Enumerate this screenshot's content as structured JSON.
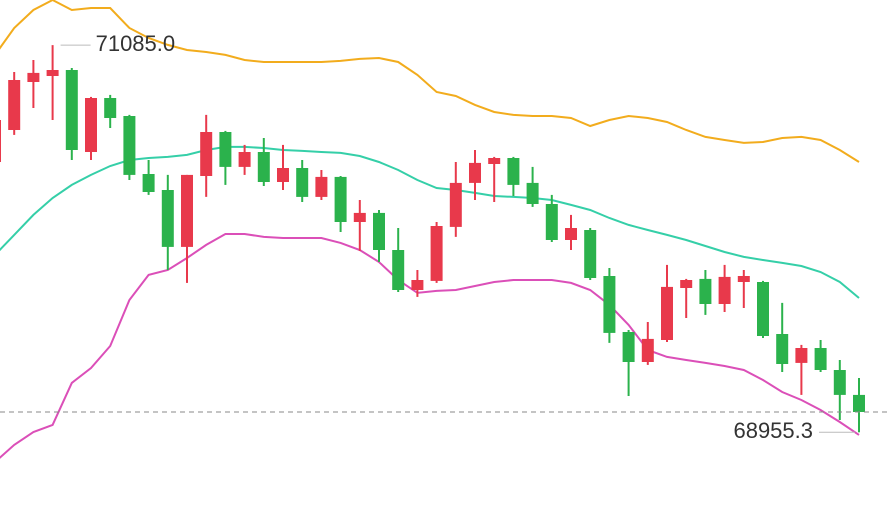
{
  "chart_data": {
    "type": "candlestick",
    "up_color": "#e8394b",
    "down_color": "#2bb24c",
    "ylim": [
      68528,
      71333
    ],
    "high_label": "71085.0",
    "low_label": "68955.3",
    "open": [
      70442,
      70618,
      70882,
      70915,
      70948,
      70497,
      70794,
      70695,
      70376,
      70288,
      69975,
      70365,
      70607,
      70415,
      70497,
      70332,
      70409,
      70250,
      70360,
      70112,
      70162,
      69958,
      69738,
      69788,
      70085,
      70327,
      70431,
      70464,
      70327,
      70211,
      70013,
      70068,
      69815,
      69507,
      69342,
      69463,
      69749,
      69799,
      69661,
      69782,
      69782,
      69496,
      69337,
      69419,
      69298,
      69161
    ],
    "high": [
      70728,
      70937,
      71003,
      71085,
      70959,
      70800,
      70811,
      70701,
      70453,
      70371,
      70371,
      70701,
      70613,
      70536,
      70574,
      70536,
      70453,
      70398,
      70365,
      70233,
      70178,
      70079,
      69848,
      70112,
      70442,
      70508,
      70470,
      70470,
      70415,
      70261,
      70151,
      70079,
      69859,
      69518,
      69562,
      69876,
      69799,
      69848,
      69876,
      69848,
      69788,
      69667,
      69436,
      69463,
      69353,
      69254
    ],
    "low": [
      70426,
      70591,
      70739,
      70673,
      70453,
      70453,
      70629,
      70343,
      70261,
      69848,
      69777,
      70250,
      70316,
      70371,
      70310,
      70288,
      70222,
      70233,
      70057,
      69953,
      69892,
      69727,
      69700,
      69777,
      70030,
      70233,
      70222,
      70255,
      70195,
      70002,
      69958,
      69793,
      69447,
      69155,
      69326,
      69452,
      69584,
      69601,
      69617,
      69639,
      69474,
      69287,
      69161,
      69287,
      69023,
      68955.3
    ],
    "close": [
      70673,
      70893,
      70932,
      70948,
      70508,
      70794,
      70684,
      70371,
      70277,
      69975,
      70371,
      70607,
      70415,
      70497,
      70332,
      70409,
      70250,
      70360,
      70112,
      70162,
      69958,
      69738,
      69793,
      70090,
      70327,
      70437,
      70464,
      70316,
      70211,
      70013,
      70079,
      69804,
      69502,
      69342,
      69469,
      69755,
      69793,
      69661,
      69810,
      69815,
      69485,
      69331,
      69419,
      69298,
      69161,
      69067
    ],
    "bands": [
      {
        "color": "#f2ac1d",
        "values": [
          71031,
          71179,
          71278,
          71333,
          71278,
          71289,
          71289,
          71179,
          71124,
          71086,
          71058,
          71047,
          71031,
          71003,
          70992,
          70992,
          70992,
          70992,
          70998,
          71009,
          71014,
          70992,
          70921,
          70827,
          70805,
          70756,
          70717,
          70701,
          70695,
          70695,
          70684,
          70640,
          70673,
          70695,
          70684,
          70662,
          70618,
          70580,
          70563,
          70547,
          70552,
          70574,
          70580,
          70563,
          70508,
          70442
        ]
      },
      {
        "color": "#35cfa8",
        "values": [
          69931,
          70041,
          70151,
          70244,
          70316,
          70371,
          70420,
          70453,
          70464,
          70470,
          70481,
          70508,
          70525,
          70525,
          70519,
          70508,
          70503,
          70497,
          70492,
          70475,
          70442,
          70398,
          70343,
          70299,
          70288,
          70272,
          70255,
          70250,
          70244,
          70233,
          70206,
          70178,
          70134,
          70096,
          70068,
          70041,
          70013,
          69980,
          69947,
          69920,
          69903,
          69887,
          69870,
          69837,
          69782,
          69694
        ]
      },
      {
        "color": "#db4fb8",
        "values": [
          68792,
          68886,
          68957,
          68996,
          69227,
          69309,
          69430,
          69683,
          69821,
          69848,
          69914,
          69986,
          70046,
          70046,
          70030,
          70024,
          70024,
          70024,
          69997,
          69958,
          69892,
          69793,
          69722,
          69733,
          69738,
          69760,
          69782,
          69793,
          69793,
          69793,
          69777,
          69738,
          69656,
          69546,
          69408,
          69370,
          69353,
          69337,
          69320,
          69298,
          69243,
          69177,
          69133,
          69078,
          69012,
          68941
        ]
      }
    ]
  }
}
